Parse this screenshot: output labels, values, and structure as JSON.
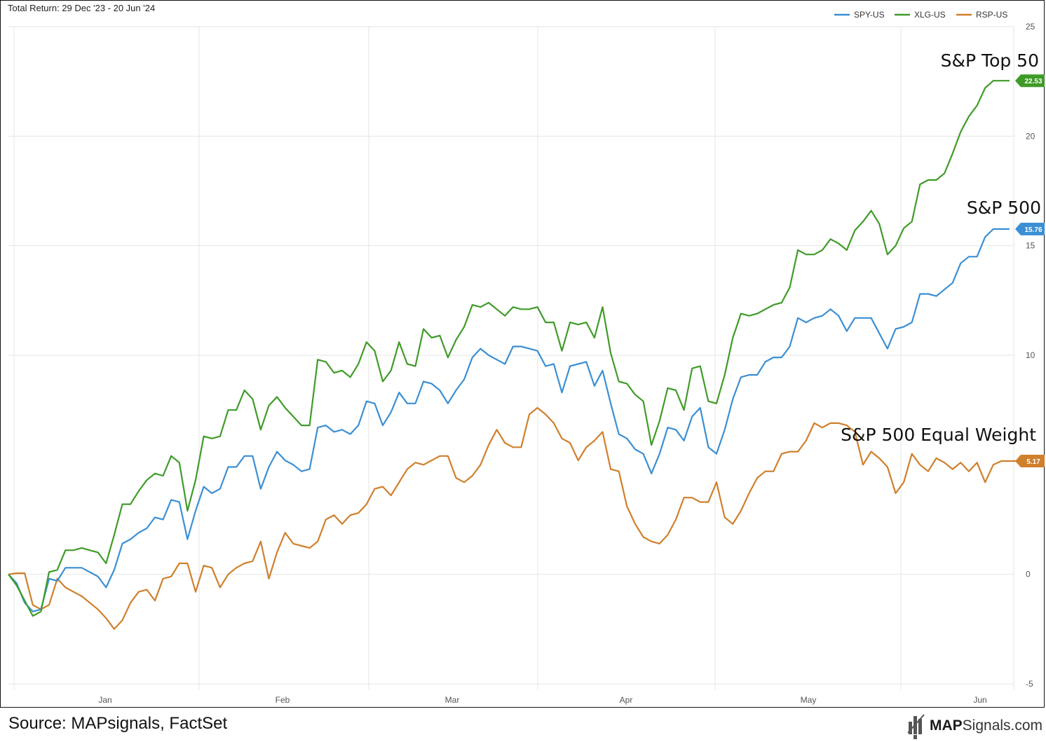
{
  "chart_title": "Total Return: 29 Dec '23 - 20 Jun '24",
  "footer": {
    "source": "Source: MAPsignals, FactSet",
    "brand_bold": "MAP",
    "brand_rest": "Signals.com"
  },
  "chart_data": {
    "type": "line",
    "title": "Total Return: 29 Dec '23 - 20 Jun '24",
    "ylim": [
      -5,
      25
    ],
    "y_ticks": [
      25,
      20,
      15,
      10,
      0,
      -5
    ],
    "x_ticks": [
      "Jan",
      "Feb",
      "Mar",
      "Apr",
      "May",
      "Jun"
    ],
    "grid": true,
    "legend_position": "top-right",
    "series": [
      {
        "name": "SPY-US",
        "label": "S&P 500",
        "color": "#3b8fd4",
        "last_value": "15.76",
        "values": [
          0,
          -0.4,
          -1.3,
          -1.7,
          -1.6,
          -0.2,
          -0.3,
          0.3,
          0.3,
          0.3,
          0.1,
          -0.1,
          -0.6,
          0.2,
          1.4,
          1.6,
          1.9,
          2.1,
          2.6,
          2.5,
          3.4,
          3.3,
          1.6,
          2.9,
          4.0,
          3.7,
          3.9,
          4.9,
          4.9,
          5.4,
          5.4,
          3.9,
          4.9,
          5.6,
          5.2,
          5.0,
          4.7,
          4.8,
          6.7,
          6.8,
          6.5,
          6.6,
          6.4,
          6.8,
          7.9,
          7.8,
          6.8,
          7.4,
          8.3,
          7.8,
          7.8,
          8.8,
          8.7,
          8.4,
          7.8,
          8.4,
          8.9,
          9.9,
          10.3,
          10.0,
          9.8,
          9.6,
          10.4,
          10.4,
          10.3,
          10.2,
          9.5,
          9.6,
          8.3,
          9.5,
          9.6,
          9.7,
          8.6,
          9.3,
          7.8,
          6.4,
          6.2,
          5.7,
          5.5,
          4.6,
          5.5,
          6.7,
          6.6,
          6.1,
          7.2,
          7.6,
          5.8,
          5.5,
          6.6,
          8.0,
          9.0,
          9.1,
          9.1,
          9.7,
          9.9,
          9.9,
          10.4,
          11.7,
          11.5,
          11.7,
          11.8,
          12.1,
          11.8,
          11.1,
          11.7,
          11.7,
          11.7,
          11.0,
          10.3,
          11.2,
          11.3,
          11.5,
          12.8,
          12.8,
          12.7,
          13.0,
          13.3,
          14.2,
          14.5,
          14.5,
          15.4,
          15.76,
          15.76,
          15.76
        ]
      },
      {
        "name": "XLG-US",
        "label": "S&P Top 50",
        "color": "#3f9b28",
        "last_value": "22.53",
        "values": [
          0,
          -0.5,
          -1.2,
          -1.9,
          -1.7,
          0.1,
          0.2,
          1.1,
          1.1,
          1.2,
          1.1,
          1.0,
          0.5,
          1.8,
          3.2,
          3.2,
          3.8,
          4.3,
          4.6,
          4.5,
          5.4,
          5.1,
          2.9,
          4.3,
          6.3,
          6.2,
          6.3,
          7.5,
          7.5,
          8.4,
          8.0,
          6.6,
          7.7,
          8.1,
          7.6,
          7.2,
          6.8,
          6.8,
          9.8,
          9.7,
          9.2,
          9.3,
          9.0,
          9.6,
          10.6,
          10.2,
          8.8,
          9.3,
          10.6,
          9.6,
          9.5,
          11.2,
          10.8,
          10.9,
          9.9,
          10.7,
          11.3,
          12.3,
          12.2,
          12.4,
          12.1,
          11.8,
          12.2,
          12.1,
          12.1,
          12.2,
          11.5,
          11.5,
          10.2,
          11.5,
          11.4,
          11.5,
          10.8,
          12.2,
          10.1,
          8.8,
          8.7,
          8.2,
          7.9,
          5.9,
          7.0,
          8.5,
          8.4,
          7.5,
          9.4,
          9.5,
          7.9,
          7.8,
          9.1,
          10.8,
          11.9,
          11.8,
          11.9,
          12.1,
          12.3,
          12.4,
          13.1,
          14.8,
          14.6,
          14.6,
          14.8,
          15.3,
          15.1,
          14.8,
          15.7,
          16.1,
          16.6,
          16.0,
          14.6,
          15.0,
          15.8,
          16.1,
          17.8,
          18.0,
          18.0,
          18.3,
          19.2,
          20.2,
          20.9,
          21.4,
          22.2,
          22.53,
          22.53,
          22.53
        ]
      },
      {
        "name": "RSP-US",
        "label": "S&P 500 Equal Weight",
        "color": "#d07f2c",
        "last_value": "5.17",
        "values": [
          0,
          0.05,
          0.05,
          -1.4,
          -1.6,
          -1.4,
          -0.2,
          -0.6,
          -0.8,
          -1.0,
          -1.3,
          -1.6,
          -2.0,
          -2.5,
          -2.1,
          -1.3,
          -0.8,
          -0.7,
          -1.2,
          -0.2,
          -0.1,
          0.5,
          0.5,
          -0.8,
          0.4,
          0.3,
          -0.6,
          0.0,
          0.3,
          0.5,
          0.6,
          1.5,
          -0.2,
          1.0,
          1.9,
          1.4,
          1.3,
          1.2,
          1.5,
          2.5,
          2.7,
          2.3,
          2.7,
          2.8,
          3.2,
          3.9,
          4.0,
          3.6,
          4.2,
          4.8,
          5.1,
          5.0,
          5.2,
          5.4,
          5.4,
          4.4,
          4.2,
          4.5,
          5.0,
          5.9,
          6.6,
          6.0,
          5.8,
          5.8,
          7.3,
          7.6,
          7.3,
          6.9,
          6.2,
          6.0,
          5.2,
          5.8,
          6.1,
          6.5,
          4.8,
          4.7,
          3.1,
          2.3,
          1.7,
          1.5,
          1.4,
          1.8,
          2.5,
          3.5,
          3.5,
          3.3,
          3.3,
          4.2,
          2.6,
          2.3,
          2.9,
          3.7,
          4.4,
          4.7,
          4.7,
          5.5,
          5.6,
          5.6,
          6.1,
          6.9,
          6.7,
          6.9,
          6.9,
          6.8,
          6.5,
          5.0,
          5.6,
          5.3,
          4.9,
          3.7,
          4.2,
          5.5,
          5.0,
          4.7,
          5.3,
          5.1,
          4.8,
          5.1,
          4.7,
          5.1,
          4.2,
          5.0,
          5.17,
          5.17,
          5.17
        ]
      }
    ]
  }
}
